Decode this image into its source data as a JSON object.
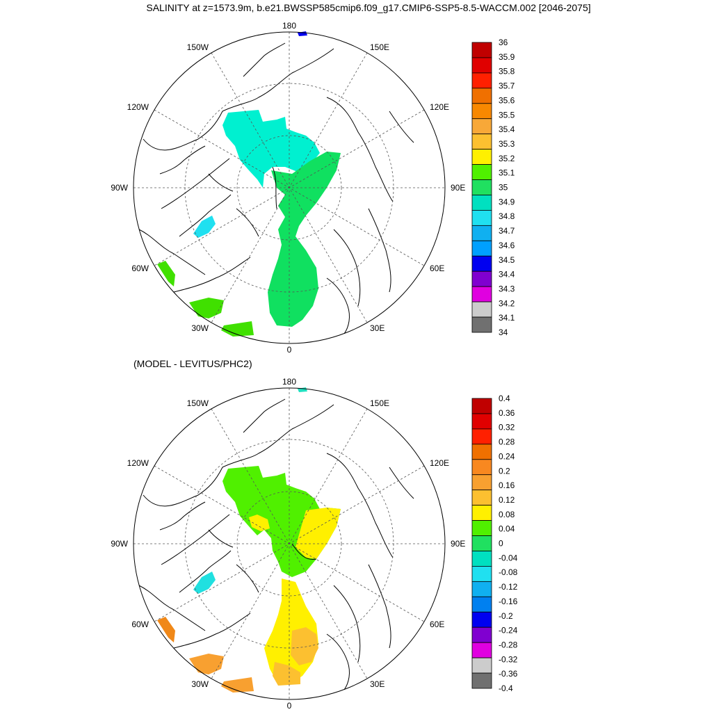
{
  "title": "SALINITY at z=1573.9m, b.e21.BWSSP585cmip6.f09_g17.CMIP6-SSP5-8.5-WACCM.002 [2046-2075]",
  "diff_title": "(MODEL - LEVITUS/PHC2)",
  "longitude_labels": {
    "top": "180",
    "bottom": "0",
    "left": "90W",
    "right": "90E",
    "upper_left_1": "150W",
    "upper_left_2": "120W",
    "upper_right_1": "150E",
    "upper_right_2": "120E",
    "lower_left_1": "60W",
    "lower_left_2": "30W",
    "lower_right_1": "60E",
    "lower_right_2": "30E"
  },
  "colors": {
    "land_outline": "#000000",
    "graticule": "#555555"
  },
  "panels": [
    {
      "id": "salinity",
      "colorbar_labels": [
        "36",
        "35.9",
        "35.8",
        "35.7",
        "35.6",
        "35.5",
        "35.4",
        "35.3",
        "35.2",
        "35.1",
        "35",
        "34.9",
        "34.8",
        "34.7",
        "34.6",
        "34.5",
        "34.4",
        "34.3",
        "34.2",
        "34.1",
        "34"
      ],
      "colorbar_colors": [
        "#c00000",
        "#e00000",
        "#ff2000",
        "#f07000",
        "#f88800",
        "#f8a838",
        "#fcc030",
        "#fff000",
        "#50f000",
        "#20e060",
        "#00e0c0",
        "#20e0f0",
        "#10b0f0",
        "#00a0ff",
        "#0000f0",
        "#8000d0",
        "#e000e0",
        "#cccccc",
        "#707070"
      ]
    },
    {
      "id": "difference",
      "colorbar_labels": [
        "0.4",
        "0.36",
        "0.32",
        "0.28",
        "0.24",
        "0.2",
        "0.16",
        "0.12",
        "0.08",
        "0.04",
        "0",
        "-0.04",
        "-0.08",
        "-0.12",
        "-0.16",
        "-0.2",
        "-0.24",
        "-0.28",
        "-0.32",
        "-0.36",
        "-0.4"
      ],
      "colorbar_colors": [
        "#c00000",
        "#e00000",
        "#ff2000",
        "#f07000",
        "#f88820",
        "#f8a030",
        "#fcc030",
        "#fff000",
        "#50f000",
        "#20e060",
        "#00e0c0",
        "#20e0f0",
        "#10b0f0",
        "#0080f0",
        "#0000f0",
        "#8000d0",
        "#e000e0",
        "#cccccc",
        "#707070"
      ]
    }
  ]
}
